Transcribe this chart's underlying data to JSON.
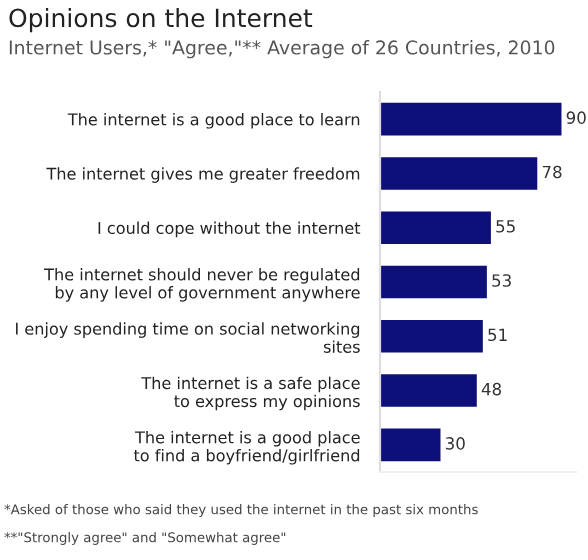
{
  "chart_data": {
    "type": "bar",
    "orientation": "horizontal",
    "title": "Opinions on the Internet",
    "subtitle": "Internet Users,* \"Agree,\"** Average of 26 Countries, 2010",
    "categories": [
      "The internet is a good place to learn",
      "The internet gives me greater freedom",
      "I could cope without the internet",
      "The internet should never be regulated\nby any level of government anywhere",
      "I enjoy spending time on social networking\nsites",
      "The internet is a safe place\nto express my opinions",
      "The internet is a good place\nto find a boyfriend/girlfriend"
    ],
    "values": [
      90,
      78,
      55,
      53,
      51,
      48,
      30
    ],
    "color": "#0f0f7a",
    "data_labels": true,
    "grid": false,
    "legend": false,
    "annotations": [
      "*Asked of those who said they used the internet in the past six months",
      "**\"Strongly agree\" and \"Somewhat agree\""
    ]
  }
}
